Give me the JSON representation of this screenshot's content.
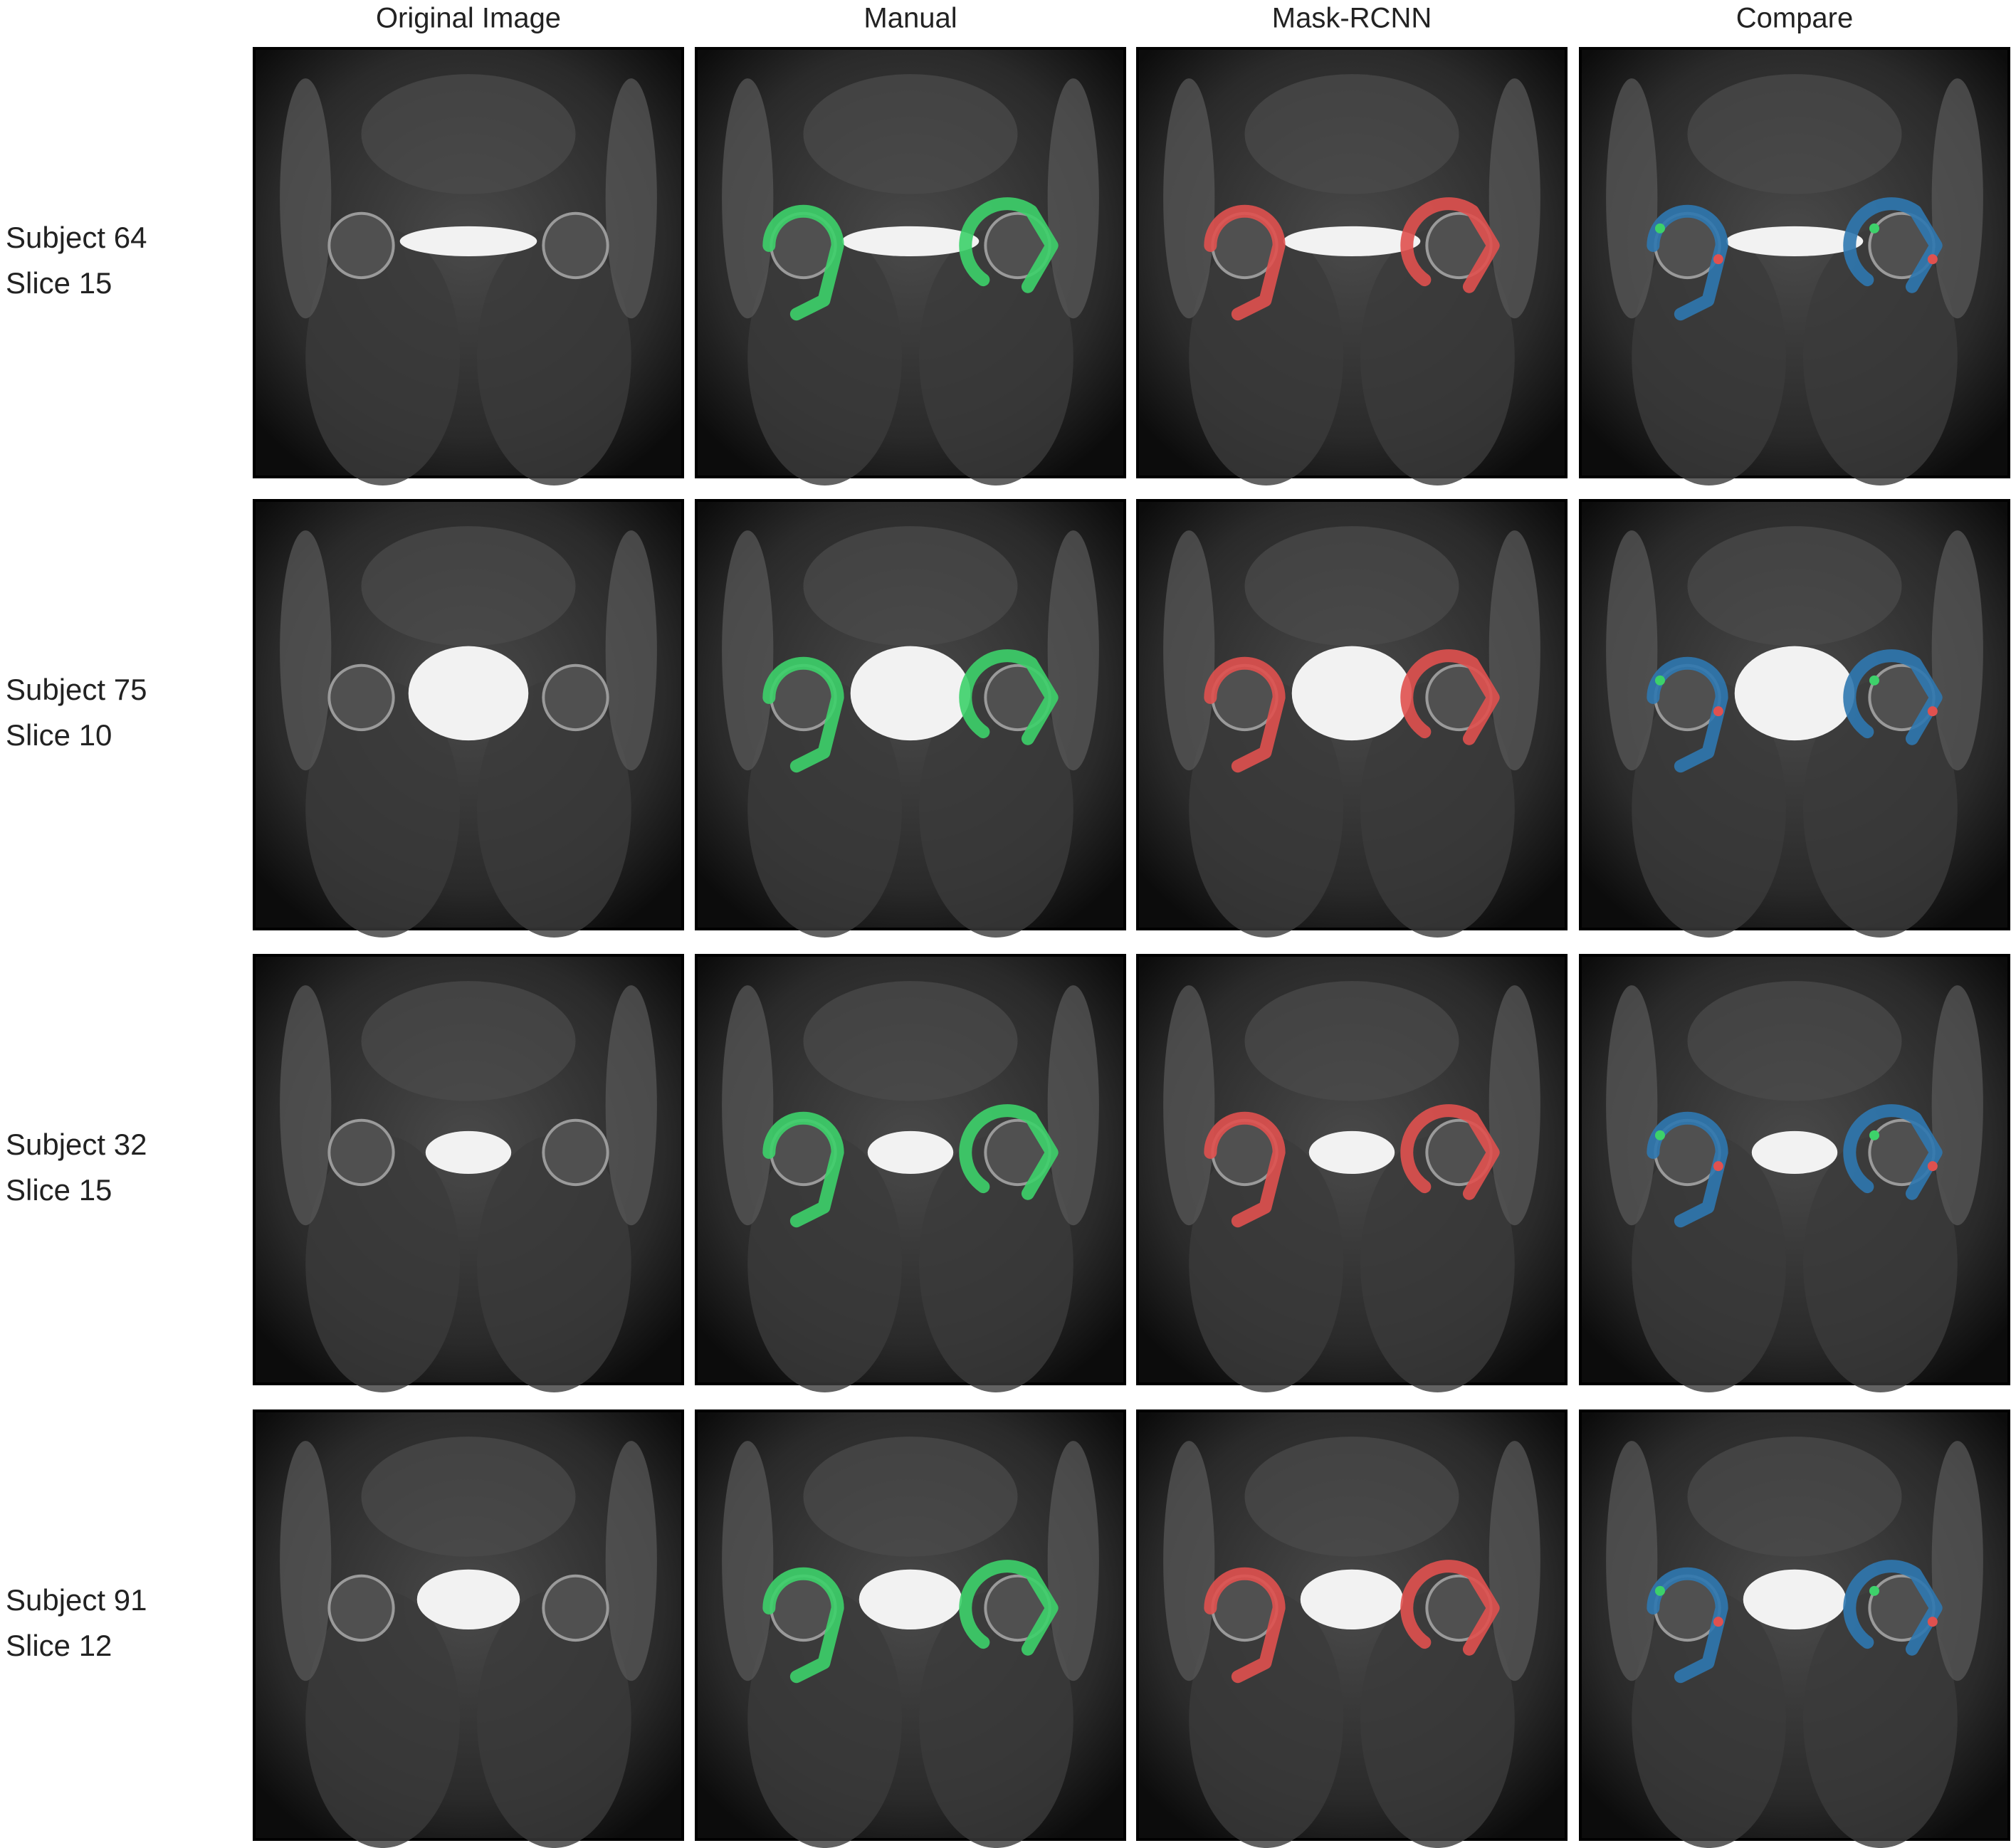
{
  "column_headers": [
    "Original Image",
    "Manual",
    "Mask-RCNN",
    "Compare"
  ],
  "rows": [
    {
      "subject": "Subject 64",
      "slice": "Slice 15"
    },
    {
      "subject": "Subject 75",
      "slice": "Slice 10"
    },
    {
      "subject": "Subject 32",
      "slice": "Slice 15"
    },
    {
      "subject": "Subject 91",
      "slice": "Slice 12"
    }
  ]
}
